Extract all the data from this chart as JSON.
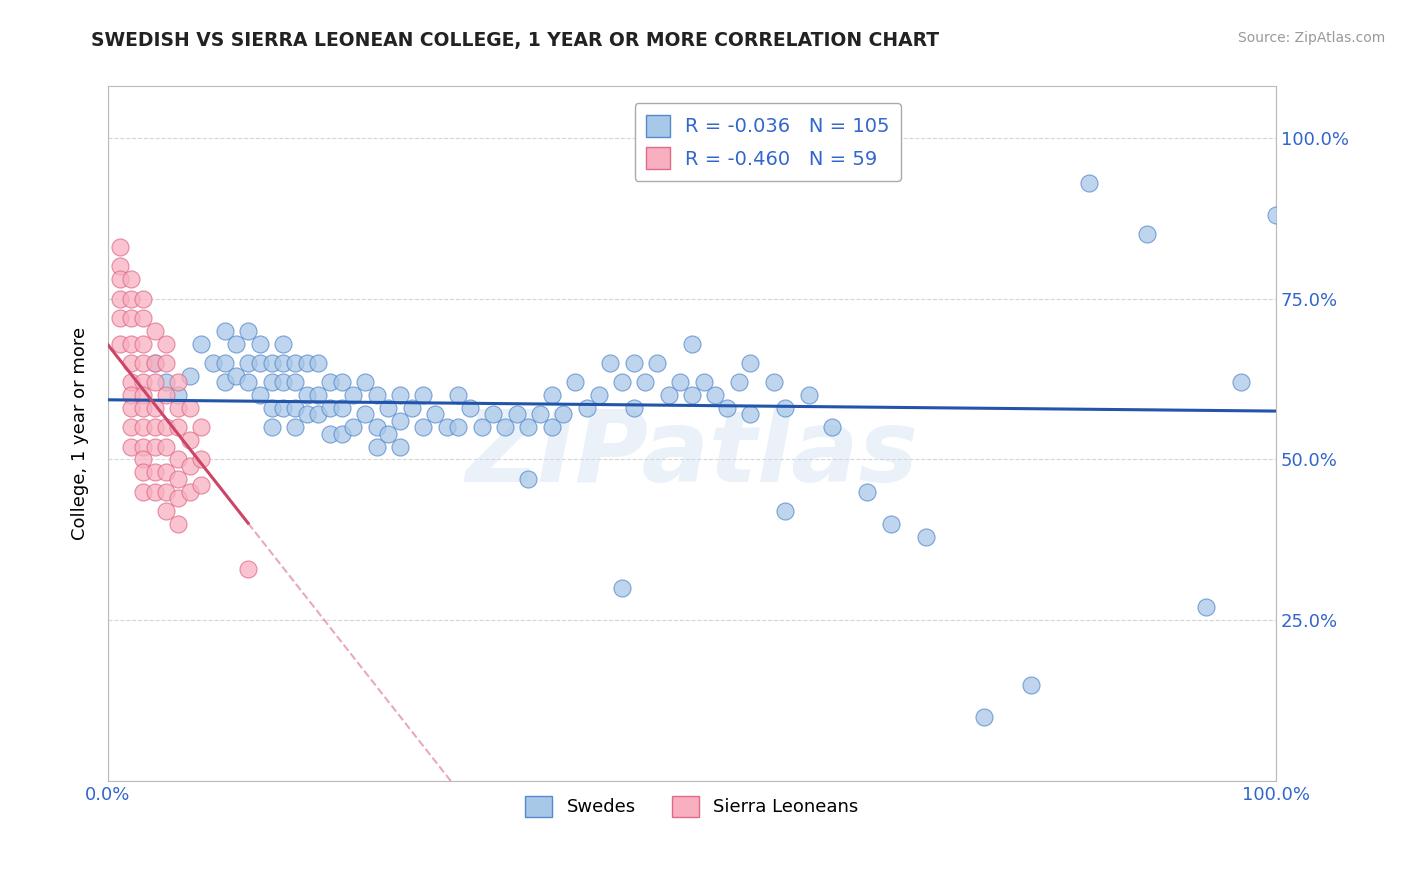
{
  "title": "SWEDISH VS SIERRA LEONEAN COLLEGE, 1 YEAR OR MORE CORRELATION CHART",
  "source_text": "Source: ZipAtlas.com",
  "ylabel": "College, 1 year or more",
  "R_swedes": -0.036,
  "N_swedes": 105,
  "R_sierra": -0.46,
  "N_sierra": 59,
  "swedes_color": "#a8c8e8",
  "sierra_color": "#f8b0c0",
  "swedes_edge_color": "#5588cc",
  "sierra_edge_color": "#e06888",
  "swedes_line_color": "#2255aa",
  "sierra_line_color": "#cc4466",
  "legend_text_color": "#3366cc",
  "watermark": "ZIPatlas",
  "xlim": [
    0.0,
    1.0
  ],
  "ylim": [
    0.0,
    1.08
  ],
  "yticks": [
    0.25,
    0.5,
    0.75,
    1.0
  ],
  "ytick_labels_right": [
    "25.0%",
    "50.0%",
    "75.0%",
    "100.0%"
  ],
  "xtick_labels": [
    "0.0%",
    "",
    "",
    "",
    "100.0%"
  ],
  "swedes_x": [
    0.04,
    0.05,
    0.06,
    0.07,
    0.08,
    0.09,
    0.1,
    0.1,
    0.1,
    0.11,
    0.11,
    0.12,
    0.12,
    0.12,
    0.13,
    0.13,
    0.13,
    0.14,
    0.14,
    0.14,
    0.14,
    0.15,
    0.15,
    0.15,
    0.15,
    0.16,
    0.16,
    0.16,
    0.16,
    0.17,
    0.17,
    0.17,
    0.18,
    0.18,
    0.18,
    0.19,
    0.19,
    0.19,
    0.2,
    0.2,
    0.2,
    0.21,
    0.21,
    0.22,
    0.22,
    0.23,
    0.23,
    0.23,
    0.24,
    0.24,
    0.25,
    0.25,
    0.25,
    0.26,
    0.27,
    0.27,
    0.28,
    0.29,
    0.3,
    0.3,
    0.31,
    0.32,
    0.33,
    0.34,
    0.35,
    0.36,
    0.37,
    0.38,
    0.38,
    0.39,
    0.4,
    0.41,
    0.42,
    0.43,
    0.44,
    0.45,
    0.45,
    0.46,
    0.47,
    0.48,
    0.49,
    0.5,
    0.5,
    0.51,
    0.52,
    0.53,
    0.54,
    0.55,
    0.55,
    0.57,
    0.58,
    0.6,
    0.62,
    0.65,
    0.67,
    0.7,
    0.75,
    0.79,
    0.84,
    0.89,
    0.94,
    0.97,
    1.0,
    0.58,
    0.44,
    0.36
  ],
  "swedes_y": [
    0.65,
    0.62,
    0.6,
    0.63,
    0.68,
    0.65,
    0.7,
    0.65,
    0.62,
    0.68,
    0.63,
    0.7,
    0.65,
    0.62,
    0.68,
    0.65,
    0.6,
    0.65,
    0.62,
    0.58,
    0.55,
    0.68,
    0.65,
    0.62,
    0.58,
    0.65,
    0.62,
    0.58,
    0.55,
    0.65,
    0.6,
    0.57,
    0.65,
    0.6,
    0.57,
    0.62,
    0.58,
    0.54,
    0.62,
    0.58,
    0.54,
    0.6,
    0.55,
    0.62,
    0.57,
    0.6,
    0.55,
    0.52,
    0.58,
    0.54,
    0.6,
    0.56,
    0.52,
    0.58,
    0.6,
    0.55,
    0.57,
    0.55,
    0.6,
    0.55,
    0.58,
    0.55,
    0.57,
    0.55,
    0.57,
    0.55,
    0.57,
    0.6,
    0.55,
    0.57,
    0.62,
    0.58,
    0.6,
    0.65,
    0.62,
    0.65,
    0.58,
    0.62,
    0.65,
    0.6,
    0.62,
    0.68,
    0.6,
    0.62,
    0.6,
    0.58,
    0.62,
    0.65,
    0.57,
    0.62,
    0.58,
    0.6,
    0.55,
    0.45,
    0.4,
    0.38,
    0.1,
    0.15,
    0.93,
    0.85,
    0.27,
    0.62,
    0.88,
    0.42,
    0.3,
    0.47
  ],
  "sierra_x": [
    0.01,
    0.01,
    0.01,
    0.01,
    0.01,
    0.01,
    0.02,
    0.02,
    0.02,
    0.02,
    0.02,
    0.02,
    0.02,
    0.02,
    0.02,
    0.02,
    0.03,
    0.03,
    0.03,
    0.03,
    0.03,
    0.03,
    0.03,
    0.03,
    0.03,
    0.03,
    0.03,
    0.03,
    0.04,
    0.04,
    0.04,
    0.04,
    0.04,
    0.04,
    0.04,
    0.04,
    0.05,
    0.05,
    0.05,
    0.05,
    0.05,
    0.05,
    0.05,
    0.05,
    0.06,
    0.06,
    0.06,
    0.06,
    0.06,
    0.06,
    0.06,
    0.07,
    0.07,
    0.07,
    0.07,
    0.08,
    0.08,
    0.08,
    0.12
  ],
  "sierra_y": [
    0.83,
    0.8,
    0.78,
    0.75,
    0.72,
    0.68,
    0.78,
    0.75,
    0.72,
    0.68,
    0.65,
    0.62,
    0.6,
    0.58,
    0.55,
    0.52,
    0.75,
    0.72,
    0.68,
    0.65,
    0.62,
    0.6,
    0.58,
    0.55,
    0.52,
    0.5,
    0.48,
    0.45,
    0.7,
    0.65,
    0.62,
    0.58,
    0.55,
    0.52,
    0.48,
    0.45,
    0.68,
    0.65,
    0.6,
    0.55,
    0.52,
    0.48,
    0.45,
    0.42,
    0.62,
    0.58,
    0.55,
    0.5,
    0.47,
    0.44,
    0.4,
    0.58,
    0.53,
    0.49,
    0.45,
    0.55,
    0.5,
    0.46,
    0.33
  ]
}
